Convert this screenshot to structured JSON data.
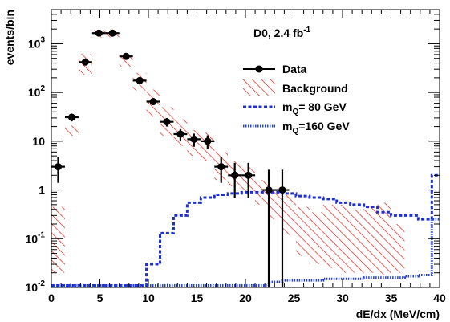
{
  "chart_data": {
    "type": "histogram",
    "annotation": "D0, 2.4 fb",
    "annotation_sup": "-1",
    "xlabel": "dE/dx (MeV/cm)",
    "ylabel": "events/bin",
    "xlim": [
      0,
      40
    ],
    "ylim": [
      0.01,
      5000
    ],
    "yscale": "log",
    "grid": false,
    "legend_position": "right",
    "x_ticks": [
      0,
      5,
      10,
      15,
      20,
      25,
      30,
      35,
      40
    ],
    "y_ticks": [
      {
        "value": 0.01,
        "base": "10",
        "exp": "-2"
      },
      {
        "value": 0.1,
        "base": "10",
        "exp": "-1"
      },
      {
        "value": 1,
        "base": "1",
        "exp": ""
      },
      {
        "value": 10,
        "base": "10",
        "exp": ""
      },
      {
        "value": 100,
        "base": "10",
        "exp": "2"
      },
      {
        "value": 1000,
        "base": "10",
        "exp": "3"
      }
    ],
    "bin_edges": [
      0,
      1.4,
      2.8,
      4.2,
      5.6,
      7,
      8.4,
      9.8,
      11.2,
      12.6,
      14,
      15.4,
      16.8,
      18.2,
      19.6,
      21,
      22.4,
      23.8,
      25.2,
      26.6,
      28,
      29.4,
      30.8,
      32.2,
      33.6,
      35,
      36.4,
      37.8,
      39.2,
      40
    ],
    "series": [
      {
        "name": "Data",
        "style": "points",
        "color": "#000000",
        "x": [
          0.7,
          2.1,
          3.5,
          4.9,
          6.3,
          7.7,
          9.1,
          10.5,
          11.9,
          13.3,
          14.7,
          16.1,
          17.5,
          18.9,
          20.3,
          22.4,
          23.8
        ],
        "y": [
          3,
          31,
          420,
          1650,
          1650,
          550,
          175,
          65,
          25,
          14,
          11,
          10,
          3,
          2,
          2,
          1,
          1
        ],
        "yerr_low": [
          1.6,
          5.5,
          20,
          40,
          40,
          23,
          13,
          8,
          5,
          3.7,
          3.3,
          3.2,
          1.6,
          1.3,
          1.3,
          1,
          1
        ],
        "yerr_high": [
          1.8,
          5.5,
          20,
          40,
          40,
          23,
          13,
          8,
          5,
          3.7,
          3.3,
          3.2,
          1.8,
          1.6,
          1.6,
          1.6,
          1.6
        ],
        "xerr": 0.7
      },
      {
        "name": "Background",
        "style": "hatched-band",
        "color": "#e8372f",
        "low": [
          0.02,
          13,
          230,
          1350,
          1350,
          340,
          110,
          32,
          13,
          8,
          5,
          4,
          1.6,
          1.2,
          0.9,
          0.5,
          0.25,
          0.12,
          0.045,
          0.03,
          0.025,
          0.02,
          0.02,
          0.02,
          0.018,
          0.02,
          0.01,
          0.01,
          0.01
        ],
        "high": [
          0.45,
          21,
          620,
          1900,
          1900,
          620,
          250,
          115,
          50,
          28,
          17,
          15,
          6,
          4,
          3,
          1.6,
          1.1,
          0.8,
          0.45,
          0.35,
          0.5,
          0.5,
          0.4,
          0.45,
          0.55,
          0.2,
          0.01,
          0.01,
          0.01
        ]
      },
      {
        "name": "m_Q= 80 GeV",
        "legend_main": "m",
        "legend_sub": "Q",
        "legend_rest": "= 80 GeV",
        "style": "dashed-step",
        "color": "#1f2fd6",
        "values": [
          0.011,
          0.011,
          0.011,
          0.011,
          0.011,
          0.011,
          0.011,
          0.03,
          0.13,
          0.3,
          0.55,
          0.7,
          0.8,
          0.85,
          0.9,
          0.9,
          0.9,
          0.85,
          0.75,
          0.7,
          0.65,
          0.55,
          0.5,
          0.45,
          0.35,
          0.3,
          0.3,
          0.25,
          2
        ]
      },
      {
        "name": "m_Q=160 GeV",
        "legend_main": "m",
        "legend_sub": "Q",
        "legend_rest": "=160 GeV",
        "style": "dotted-step",
        "color": "#2540e0",
        "values": [
          0.011,
          0.011,
          0.011,
          0.011,
          0.011,
          0.011,
          0.011,
          0.011,
          0.011,
          0.011,
          0.011,
          0.011,
          0.011,
          0.011,
          0.011,
          0.011,
          0.013,
          0.014,
          0.014,
          0.014,
          0.015,
          0.015,
          0.015,
          0.016,
          0.016,
          0.016,
          0.017,
          0.018,
          0.25
        ]
      }
    ]
  }
}
